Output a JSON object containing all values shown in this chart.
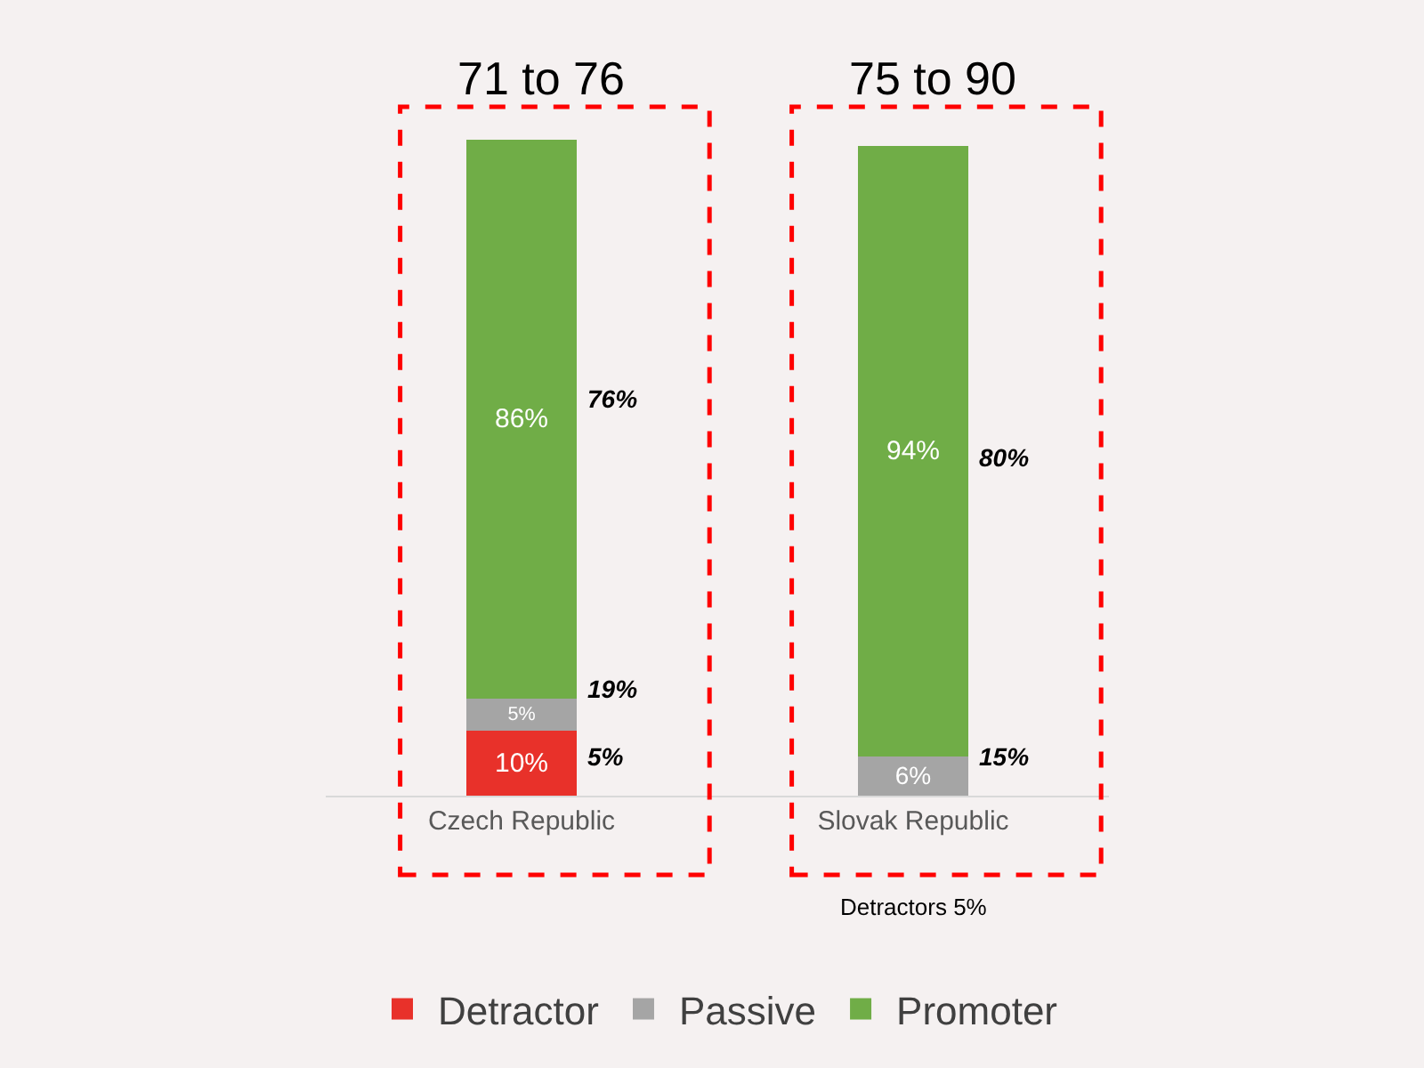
{
  "chart_data": {
    "type": "bar",
    "stacked": true,
    "legend": "bottom",
    "categories": [
      "Czech Republic",
      "Slovak Republic"
    ],
    "series": [
      {
        "name": "Detractor",
        "color": "#e8312a",
        "values": [
          10,
          null
        ],
        "value_labels": [
          "10%",
          null
        ]
      },
      {
        "name": "Passive",
        "color": "#a5a5a5",
        "values": [
          5,
          6
        ],
        "value_labels": [
          "5%",
          "6%"
        ]
      },
      {
        "name": "Promoter",
        "color": "#70ad47",
        "values": [
          86,
          94
        ],
        "value_labels": [
          "86%",
          "94%"
        ]
      }
    ],
    "annotations": [
      "71 to 76",
      "75 to 90",
      "76%",
      "19%",
      "5%",
      "80%",
      "15%",
      "Detractors 5%"
    ]
  }
}
